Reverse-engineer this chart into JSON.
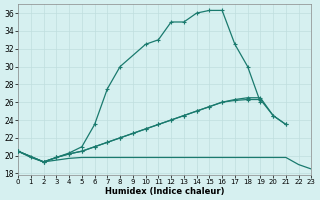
{
  "xlabel": "Humidex (Indice chaleur)",
  "bg_color": "#d6f0f0",
  "line_color": "#1a7a6e",
  "grid_color": "#c0dede",
  "x_ticks": [
    0,
    1,
    2,
    3,
    4,
    5,
    6,
    7,
    8,
    9,
    10,
    11,
    12,
    13,
    14,
    15,
    16,
    17,
    18,
    19,
    20,
    21,
    22,
    23
  ],
  "y_ticks": [
    18,
    20,
    22,
    24,
    26,
    28,
    30,
    32,
    34,
    36
  ],
  "xlim": [
    0,
    23
  ],
  "ylim": [
    17.8,
    37.0
  ],
  "curve1_x": [
    0,
    1,
    2,
    3,
    4,
    5,
    6,
    7,
    8,
    10,
    11,
    12,
    13,
    14,
    15,
    16,
    17,
    18,
    19
  ],
  "curve1_y": [
    20.5,
    19.8,
    19.3,
    19.8,
    20.3,
    21.0,
    23.5,
    27.5,
    30.0,
    32.5,
    33.0,
    35.0,
    35.0,
    36.0,
    36.3,
    36.3,
    32.5,
    30.0,
    26.0
  ],
  "curve2_x": [
    0,
    2,
    3,
    4,
    5,
    6,
    7,
    8,
    9,
    10,
    11,
    12,
    13,
    14,
    15,
    16,
    17,
    18,
    19,
    20,
    21
  ],
  "curve2_y": [
    20.5,
    19.3,
    19.8,
    20.2,
    20.5,
    21.0,
    21.5,
    22.0,
    22.5,
    23.0,
    23.5,
    24.0,
    24.5,
    25.0,
    25.5,
    26.0,
    26.3,
    26.5,
    26.5,
    24.5,
    23.5
  ],
  "curve3_x": [
    0,
    2,
    3,
    4,
    5,
    6,
    7,
    8,
    9,
    10,
    11,
    12,
    13,
    14,
    15,
    16,
    17,
    18,
    19,
    20,
    21
  ],
  "curve3_y": [
    20.5,
    19.3,
    19.8,
    20.2,
    20.5,
    21.0,
    21.5,
    22.0,
    22.5,
    23.0,
    23.5,
    24.0,
    24.5,
    25.0,
    25.5,
    26.0,
    26.2,
    26.3,
    26.3,
    24.5,
    23.5
  ],
  "curve4_x": [
    0,
    2,
    3,
    4,
    5,
    6,
    7,
    8,
    9,
    10,
    11,
    12,
    13,
    14,
    15,
    16,
    17,
    18,
    19,
    20,
    21,
    22,
    23
  ],
  "curve4_y": [
    20.5,
    19.3,
    19.5,
    19.7,
    19.8,
    19.8,
    19.8,
    19.8,
    19.8,
    19.8,
    19.8,
    19.8,
    19.8,
    19.8,
    19.8,
    19.8,
    19.8,
    19.8,
    19.8,
    19.8,
    19.8,
    19.0,
    18.5
  ]
}
